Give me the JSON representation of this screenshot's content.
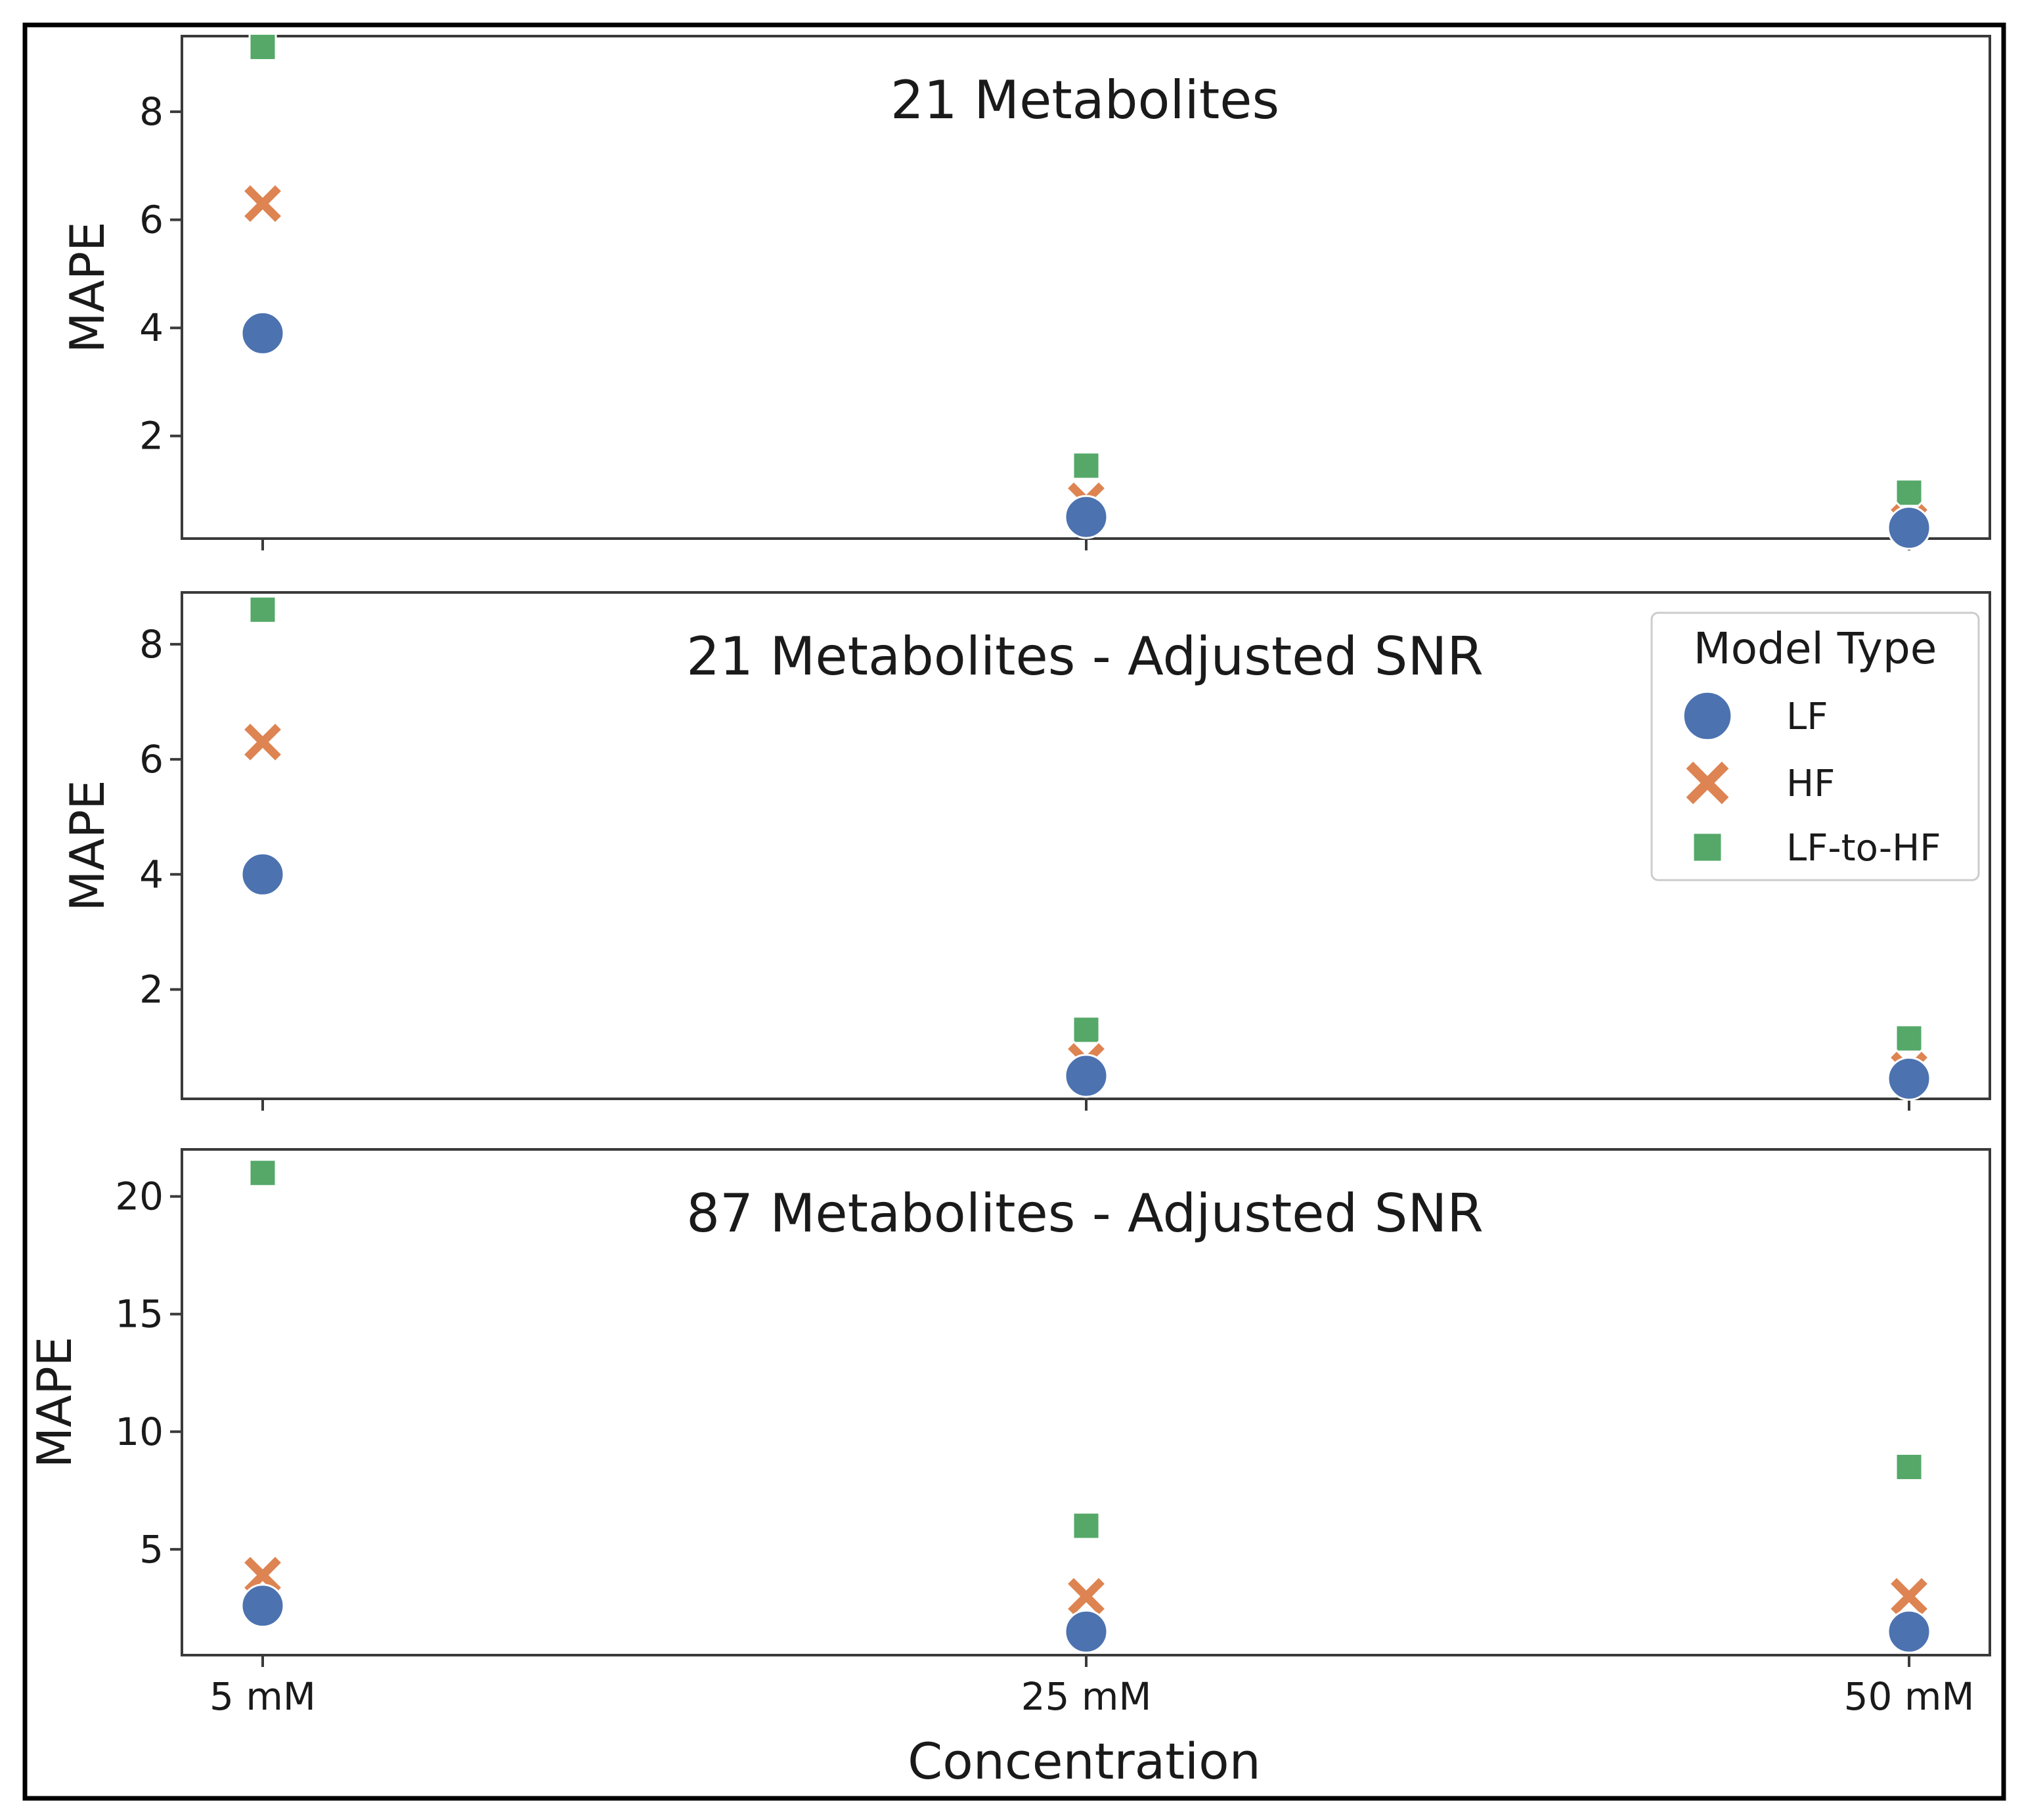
{
  "colors": {
    "LF": "#4c72b0",
    "HF": "#dd8452",
    "LF-to-HF": "#55a868",
    "axes": "#3a3a3a",
    "border": "#000000"
  },
  "legend": {
    "title": "Model Type",
    "placement": "upper-right of middle panel",
    "items": [
      {
        "label": "LF",
        "marker": "circle",
        "series": "LF"
      },
      {
        "label": "HF",
        "marker": "x",
        "series": "HF"
      },
      {
        "label": "LF-to-HF",
        "marker": "square",
        "series": "LF-to-HF"
      }
    ]
  },
  "chart_data": {
    "type": "scatter",
    "xlabel": "Concentration",
    "categories": [
      "5 mM",
      "25 mM",
      "50 mM"
    ],
    "panels": [
      {
        "title": "21 Metabolites",
        "ylabel": "MAPE",
        "ylim": [
          0.1,
          9.4
        ],
        "yticks": [
          2,
          4,
          6,
          8
        ],
        "series": [
          {
            "name": "LF",
            "values": [
              3.9,
              0.5,
              0.3
            ]
          },
          {
            "name": "HF",
            "values": [
              6.3,
              0.8,
              0.4
            ]
          },
          {
            "name": "LF-to-HF",
            "values": [
              9.2,
              1.45,
              0.95
            ]
          }
        ]
      },
      {
        "title": "21 Metabolites - Adjusted SNR",
        "ylabel": "MAPE",
        "ylim": [
          0.1,
          8.9
        ],
        "yticks": [
          2,
          4,
          6,
          8
        ],
        "series": [
          {
            "name": "LF",
            "values": [
              4.0,
              0.5,
              0.45
            ]
          },
          {
            "name": "HF",
            "values": [
              6.3,
              0.75,
              0.6
            ]
          },
          {
            "name": "LF-to-HF",
            "values": [
              8.6,
              1.3,
              1.15
            ]
          }
        ]
      },
      {
        "title": "87 Metabolites - Adjusted SNR",
        "ylabel": "MAPE",
        "ylim": [
          0.5,
          22
        ],
        "yticks": [
          5,
          10,
          15,
          20
        ],
        "series": [
          {
            "name": "LF",
            "values": [
              2.6,
              1.5,
              1.5
            ]
          },
          {
            "name": "HF",
            "values": [
              3.9,
              3.0,
              3.0
            ]
          },
          {
            "name": "LF-to-HF",
            "values": [
              21.0,
              6.0,
              8.5
            ]
          }
        ]
      }
    ]
  }
}
